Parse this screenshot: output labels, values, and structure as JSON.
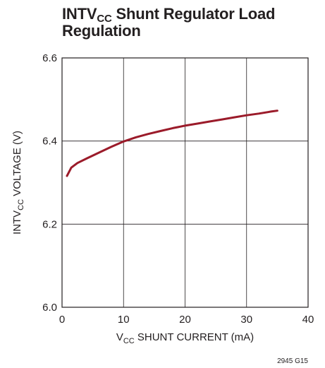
{
  "chart_data": {
    "type": "line",
    "title": {
      "main": "INTV",
      "sub": "CC",
      "rest": " Shunt Regulator Load Regulation"
    },
    "xlabel": {
      "pre": "V",
      "sub": "CC",
      "rest": " SHUNT CURRENT (mA)"
    },
    "ylabel": {
      "pre": "INTV",
      "sub": "CC",
      "rest": " VOLTAGE (V)"
    },
    "xlim": [
      0,
      40
    ],
    "ylim": [
      6.0,
      6.6
    ],
    "x_ticks": [
      "0",
      "10",
      "20",
      "30",
      "40"
    ],
    "y_ticks": [
      "6.0",
      "6.2",
      "6.4",
      "6.6"
    ],
    "grid": true,
    "line_color": "#9b1b2a",
    "series": [
      {
        "x": [
          0.8,
          1.5,
          2.5,
          4,
          6,
          8,
          10,
          12,
          14,
          16,
          18,
          20,
          22,
          24,
          26,
          28,
          30,
          32,
          34,
          35
        ],
        "y": [
          6.316,
          6.336,
          6.347,
          6.358,
          6.372,
          6.386,
          6.399,
          6.409,
          6.417,
          6.424,
          6.431,
          6.437,
          6.442,
          6.447,
          6.452,
          6.457,
          6.462,
          6.466,
          6.471,
          6.473
        ]
      }
    ],
    "footnote": "2945 G15"
  }
}
